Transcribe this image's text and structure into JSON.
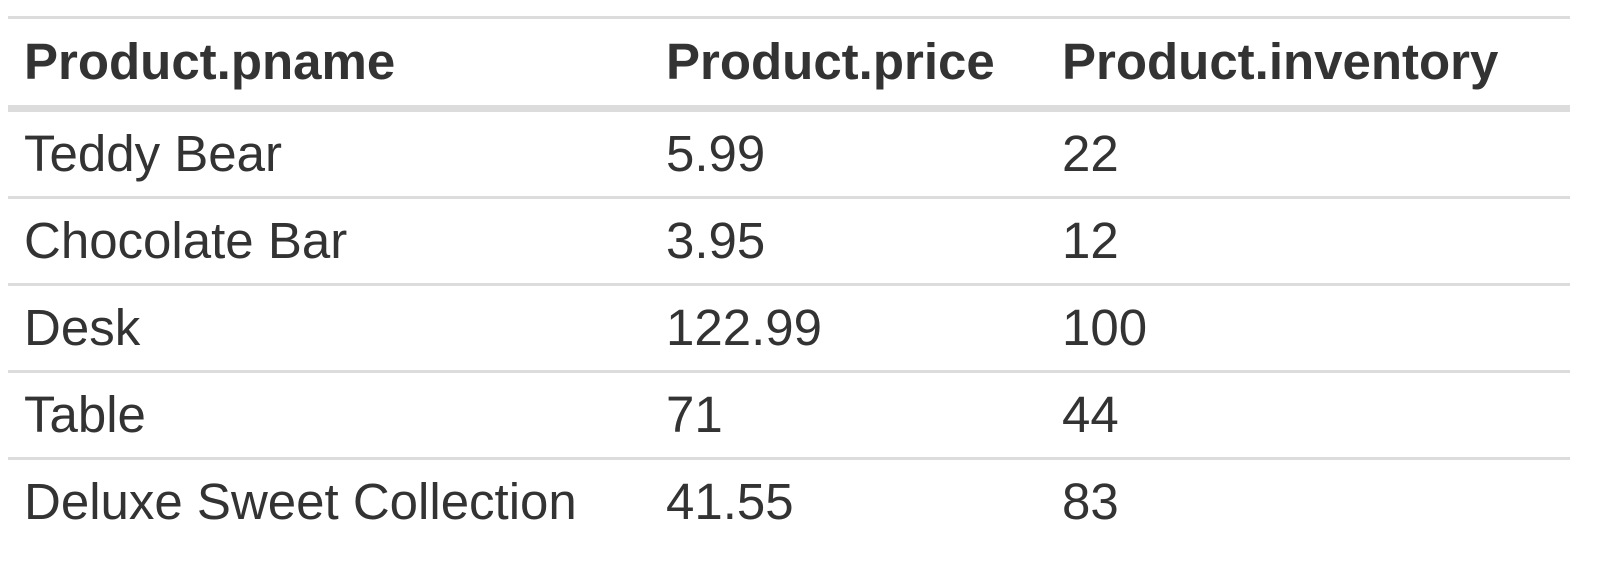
{
  "table": {
    "columns": [
      "Product.pname",
      "Product.price",
      "Product.inventory"
    ],
    "rows": [
      [
        "Teddy Bear",
        "5.99",
        "22"
      ],
      [
        "Chocolate Bar",
        "3.95",
        "12"
      ],
      [
        "Desk",
        "122.99",
        "100"
      ],
      [
        "Table",
        "71",
        "44"
      ],
      [
        "Deluxe Sweet Collection",
        "41.55",
        "83"
      ]
    ]
  },
  "colors": {
    "text": "#333333",
    "border": "#dcdcdc",
    "background": "#ffffff"
  }
}
